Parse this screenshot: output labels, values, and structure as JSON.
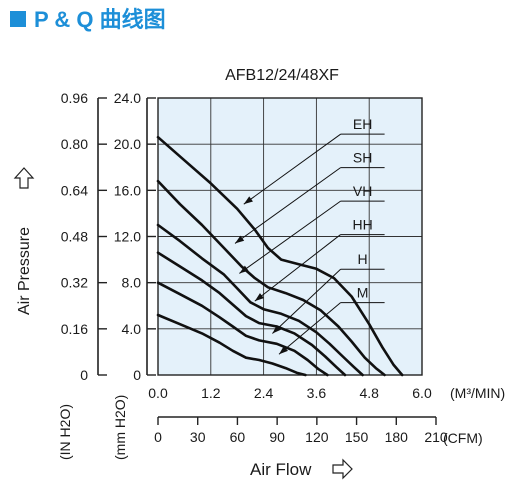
{
  "page_title": "P & Q 曲线图",
  "title_bullet_color": "#1d8fd8",
  "chart_data": {
    "type": "line",
    "title": "AFB12/24/48XF",
    "plot_bg": "#e4f1fa",
    "grid": true,
    "xlim": [
      0,
      6.0
    ],
    "ylim": [
      0,
      24.0
    ],
    "x_ticks": [
      "0.0",
      "1.2",
      "2.4",
      "3.6",
      "4.8",
      "6.0"
    ],
    "x_unit": "(M³/MIN)",
    "x2_ticks": [
      "0",
      "30",
      "60",
      "90",
      "120",
      "150",
      "180",
      "210"
    ],
    "x2_unit": "(CFM)",
    "xlabel": "Air Flow",
    "y_ticks_mm": [
      "0",
      "4.0",
      "8.0",
      "12.0",
      "16.0",
      "20.0",
      "24.0"
    ],
    "y_ticks_in": [
      "0",
      "0.16",
      "0.32",
      "0.48",
      "0.64",
      "0.80",
      "0.96"
    ],
    "y_unit_in": "(IN H2O)",
    "y_unit_mm": "(mm H2O)",
    "ylabel": "Air Pressure",
    "series": [
      {
        "name": "EH",
        "label_at": [
          4.65,
          21.3
        ],
        "pointer_at": [
          1.95,
          14.8
        ],
        "x": [
          0.0,
          0.6,
          1.2,
          1.8,
          2.2,
          2.5,
          2.8,
          3.2,
          3.6,
          4.0,
          4.4,
          4.8,
          5.1,
          5.35,
          5.55
        ],
        "y": [
          20.6,
          18.6,
          16.6,
          14.4,
          12.6,
          11.0,
          10.0,
          9.6,
          9.2,
          8.4,
          6.8,
          4.4,
          2.4,
          0.9,
          0.0
        ]
      },
      {
        "name": "SH",
        "label_at": [
          4.65,
          18.4
        ],
        "pointer_at": [
          1.75,
          11.4
        ],
        "x": [
          0.0,
          0.5,
          1.0,
          1.5,
          1.9,
          2.2,
          2.5,
          2.9,
          3.3,
          3.7,
          4.1,
          4.4,
          4.7,
          4.95,
          5.15
        ],
        "y": [
          16.8,
          14.8,
          13.0,
          11.0,
          9.4,
          8.4,
          7.6,
          7.1,
          6.5,
          5.6,
          4.2,
          2.9,
          1.5,
          0.6,
          0.0
        ]
      },
      {
        "name": "VH",
        "label_at": [
          4.65,
          15.5
        ],
        "pointer_at": [
          1.85,
          8.8
        ],
        "x": [
          0.0,
          0.5,
          1.0,
          1.5,
          1.8,
          2.1,
          2.4,
          2.8,
          3.2,
          3.6,
          3.9,
          4.2,
          4.45,
          4.65
        ],
        "y": [
          13.0,
          11.6,
          10.1,
          8.7,
          7.5,
          6.3,
          5.7,
          5.3,
          4.7,
          3.7,
          2.7,
          1.6,
          0.7,
          0.0
        ]
      },
      {
        "name": "HH",
        "label_at": [
          4.65,
          12.6
        ],
        "pointer_at": [
          2.2,
          6.4
        ],
        "x": [
          0.0,
          0.5,
          1.0,
          1.4,
          1.7,
          2.0,
          2.3,
          2.7,
          3.1,
          3.5,
          3.8,
          4.05,
          4.25
        ],
        "y": [
          10.6,
          9.4,
          8.2,
          7.1,
          6.1,
          5.1,
          4.5,
          4.2,
          3.6,
          2.6,
          1.6,
          0.7,
          0.0
        ]
      },
      {
        "name": "H",
        "label_at": [
          4.65,
          9.6
        ],
        "pointer_at": [
          2.6,
          3.6
        ],
        "x": [
          0.0,
          0.5,
          1.0,
          1.4,
          1.7,
          2.0,
          2.3,
          2.7,
          3.1,
          3.4,
          3.65,
          3.85
        ],
        "y": [
          8.0,
          7.0,
          6.0,
          5.0,
          4.2,
          3.4,
          3.0,
          2.7,
          2.1,
          1.3,
          0.5,
          0.0
        ]
      },
      {
        "name": "M",
        "label_at": [
          4.65,
          6.7
        ],
        "pointer_at": [
          2.75,
          1.8
        ],
        "x": [
          0.0,
          0.5,
          1.0,
          1.4,
          1.7,
          2.0,
          2.3,
          2.6,
          2.9,
          3.15,
          3.35
        ],
        "y": [
          5.2,
          4.4,
          3.6,
          2.8,
          2.1,
          1.5,
          1.3,
          1.0,
          0.6,
          0.2,
          0.0
        ]
      }
    ]
  }
}
